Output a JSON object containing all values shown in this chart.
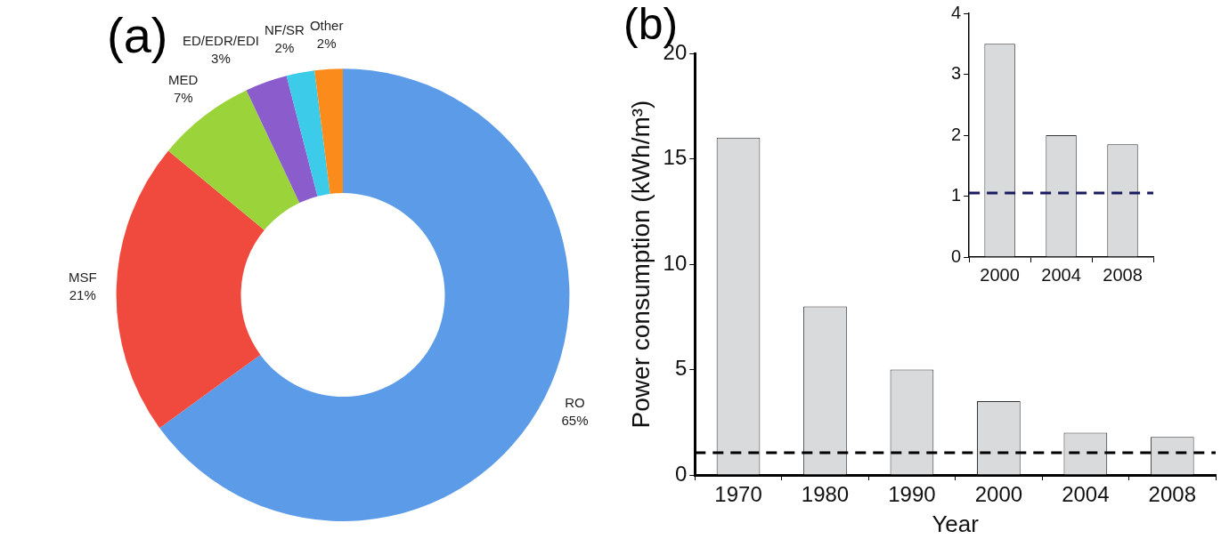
{
  "chart_data": [
    {
      "type": "donut",
      "title": "(a)",
      "categories": [
        "RO",
        "MSF",
        "MED",
        "ED/EDR/EDI",
        "NF/SR",
        "Other"
      ],
      "values": [
        65,
        21,
        7,
        3,
        2,
        2
      ],
      "colors": [
        "#5b9be8",
        "#f04a3e",
        "#9bd43a",
        "#8a5ccc",
        "#3ccbe8",
        "#fb8c1c"
      ],
      "value_labels": [
        "65%",
        "21%",
        "7%",
        "3%",
        "2%",
        "2%"
      ]
    },
    {
      "type": "bar",
      "title": "(b)",
      "categories": [
        "1970",
        "1980",
        "1990",
        "2000",
        "2004",
        "2008"
      ],
      "values": [
        16,
        8,
        5,
        3.5,
        2,
        1.8
      ],
      "color": "#d9dadc",
      "xlabel": "Year",
      "ylabel": "Power consumption (kWh/m³)",
      "ylim": [
        0,
        20
      ],
      "yticks": [
        0,
        5,
        10,
        15,
        20
      ],
      "grid": false,
      "ref_lines": [
        {
          "axis": "y",
          "value": 1.05,
          "color": "#000000",
          "line_style": "dashed"
        }
      ]
    },
    {
      "type": "bar",
      "categories": [
        "2000",
        "2004",
        "2008"
      ],
      "values": [
        3.5,
        2,
        1.85
      ],
      "color": "#d9dadc",
      "ylim": [
        0,
        4
      ],
      "yticks": [
        0,
        1,
        2,
        3,
        4
      ],
      "grid": false,
      "ref_lines": [
        {
          "axis": "y",
          "value": 1.05,
          "color": "#1a1a5e",
          "line_style": "dashed"
        }
      ]
    }
  ]
}
